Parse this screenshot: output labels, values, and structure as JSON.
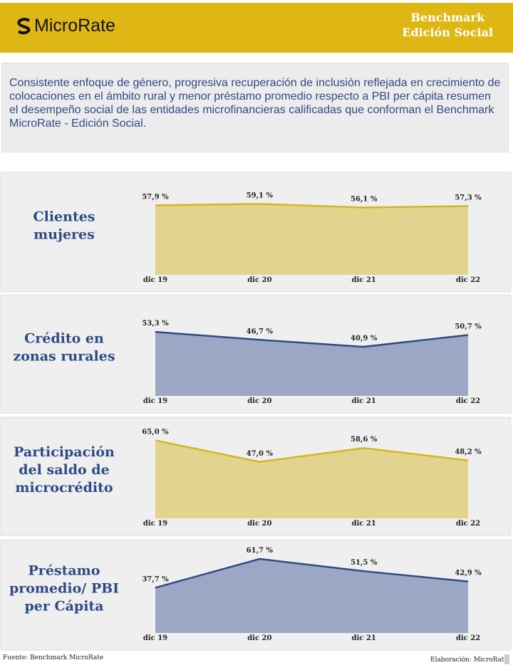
{
  "header": {
    "logo": "MicroRate",
    "title_lines": [
      "Benchmark",
      "Edición Social"
    ]
  },
  "intro": "Consistente enfoque de género, progresiva recuperación de inclusión reflejada en crecimiento de colocaciones en el ámbito rural y menor préstamo promedio respecto a PBI per cápita resumen el desempeño social de las entidades microfinancieras calificadas que conforman el Benchmark MicroRate - Edición Social.",
  "chart_data": [
    {
      "type": "area",
      "title_lines": [
        "Clientes",
        "mujeres"
      ],
      "categories": [
        "dic 19",
        "dic 20",
        "dic 21",
        "dic 22"
      ],
      "values": [
        57.9,
        59.1,
        56.1,
        57.3
      ],
      "value_labels": [
        "57,9 %",
        "59,1 %",
        "56,1 %",
        "57,3 %"
      ],
      "color": "#d6b520",
      "fill": "#e2d48e",
      "ylim": [
        0,
        70
      ]
    },
    {
      "type": "area",
      "title_lines": [
        "Crédito en",
        "zonas rurales"
      ],
      "categories": [
        "dic 19",
        "dic 20",
        "dic 21",
        "dic 22"
      ],
      "values": [
        53.3,
        46.7,
        40.9,
        50.7
      ],
      "value_labels": [
        "53,3 %",
        "46,7 %",
        "40,9 %",
        "50,7 %"
      ],
      "color": "#2e4a86",
      "fill": "#9ba7c5",
      "ylim": [
        0,
        70
      ]
    },
    {
      "type": "area",
      "title_lines": [
        "Participación",
        "del saldo de",
        "microcrédito"
      ],
      "categories": [
        "dic 19",
        "dic 20",
        "dic 21",
        "dic 22"
      ],
      "values": [
        65.0,
        47.0,
        58.6,
        48.2
      ],
      "value_labels": [
        "65,0 %",
        "47,0 %",
        "58,6 %",
        "48,2 %"
      ],
      "color": "#d6b520",
      "fill": "#e2d48e",
      "ylim": [
        0,
        70
      ]
    },
    {
      "type": "area",
      "title_lines": [
        "Préstamo",
        "promedio/ PBI",
        "per Cápita"
      ],
      "categories": [
        "dic 19",
        "dic 20",
        "dic 21",
        "dic 22"
      ],
      "values": [
        37.7,
        61.7,
        51.5,
        42.9
      ],
      "value_labels": [
        "37,7 %",
        "61,7 %",
        "51,5 %",
        "42,9 %"
      ],
      "color": "#2e4a86",
      "fill": "#9ba7c5",
      "ylim": [
        0,
        70
      ]
    }
  ],
  "footer": {
    "source": "Fuente: Benchmark MicroRate",
    "credit": "Elaboración: MicroRate"
  }
}
